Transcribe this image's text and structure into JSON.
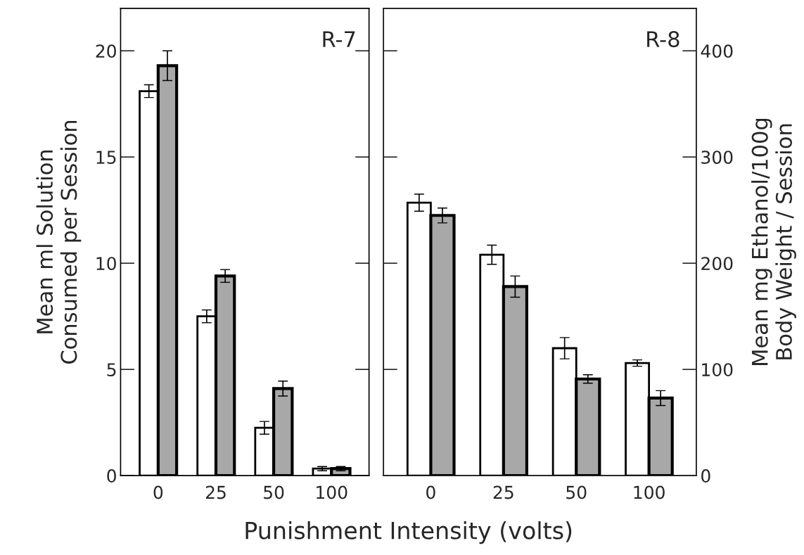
{
  "chart_data": [
    {
      "type": "bar",
      "categories": [
        "0",
        "25",
        "50",
        "100"
      ],
      "xlabel": "Punishment Intensity (volts)",
      "ylabel": "Mean ml Solution\nConsumed per Session",
      "ylim": [
        0,
        22
      ],
      "yticks": [
        0,
        5,
        10,
        15,
        20
      ],
      "annotations": [
        "R-7"
      ],
      "grid": false,
      "legend": false,
      "series": [
        {
          "color": "#ffffff",
          "values": [
            18.1,
            7.5,
            2.25,
            0.33
          ],
          "errors": [
            0.3,
            0.3,
            0.3,
            0.1
          ]
        },
        {
          "color": "#a8a8a8",
          "values": [
            19.3,
            9.4,
            4.1,
            0.33
          ],
          "errors": [
            0.7,
            0.3,
            0.35,
            0.1
          ]
        }
      ]
    },
    {
      "type": "bar",
      "categories": [
        "0",
        "25",
        "50",
        "100"
      ],
      "y2label": "Mean mg Ethanol/100g\nBody Weight / Session",
      "y2lim": [
        0,
        440
      ],
      "y2ticks": [
        0,
        100,
        200,
        300,
        400
      ],
      "annotations": [
        "R-8"
      ],
      "grid": false,
      "legend": false,
      "series": [
        {
          "color": "#ffffff",
          "axis": "y2",
          "values": [
            257,
            208,
            120,
            106
          ],
          "errors": [
            8,
            9,
            10,
            3
          ]
        },
        {
          "color": "#a8a8a8",
          "axis": "y2",
          "values": [
            245,
            178,
            91,
            73
          ],
          "errors": [
            7,
            10,
            4,
            7
          ]
        }
      ]
    }
  ]
}
